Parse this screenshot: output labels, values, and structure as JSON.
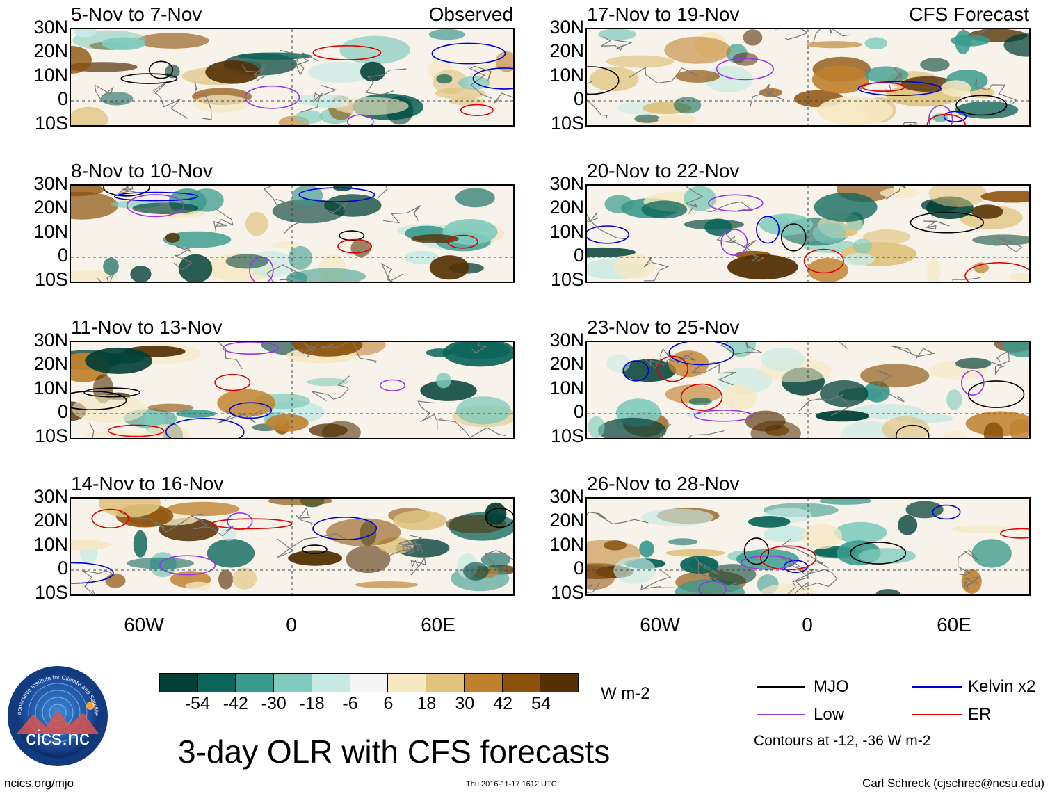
{
  "observed_label": "Observed",
  "forecast_label": "CFS Forecast",
  "lat_labels": [
    "30N",
    "20N",
    "10N",
    "0",
    "10S"
  ],
  "lon_labels": [
    "60W",
    "0",
    "60E"
  ],
  "panels_left": [
    {
      "title": "5-Nov to 7-Nov"
    },
    {
      "title": "8-Nov to 10-Nov"
    },
    {
      "title": "11-Nov to 13-Nov"
    },
    {
      "title": "14-Nov to 16-Nov"
    }
  ],
  "panels_right": [
    {
      "title": "17-Nov to 19-Nov"
    },
    {
      "title": "20-Nov to 22-Nov"
    },
    {
      "title": "23-Nov to 25-Nov"
    },
    {
      "title": "26-Nov to 28-Nov"
    }
  ],
  "colorbar": {
    "colors": [
      "#013f36",
      "#0a6458",
      "#3a9a8d",
      "#80cbbd",
      "#c7eae4",
      "#f5f5f5",
      "#f6e8c2",
      "#dfc27d",
      "#bf812d",
      "#8c510a",
      "#543005"
    ],
    "ticks": [
      "-54",
      "-42",
      "-30",
      "-18",
      "-6",
      "6",
      "18",
      "30",
      "42",
      "54"
    ],
    "units": "W m-2"
  },
  "legend": {
    "items": [
      {
        "label": "MJO",
        "color": "#000000"
      },
      {
        "label": "Kelvin x2",
        "color": "#0000dd"
      },
      {
        "label": "Low",
        "color": "#9933ee"
      },
      {
        "label": "ER",
        "color": "#e00000"
      }
    ],
    "note": "Contours at -12, -36 W m-2"
  },
  "logo": {
    "text": "cics.nc",
    "ring": "Cooperative Institute for Climate and Satellites"
  },
  "title": "3-day OLR with CFS forecasts",
  "footer": {
    "left": "ncics.org/mjo",
    "center": "Thu 2016-11-17 1612 UTC",
    "right": "Carl Schreck (cjschrec@ncsu.edu)"
  }
}
